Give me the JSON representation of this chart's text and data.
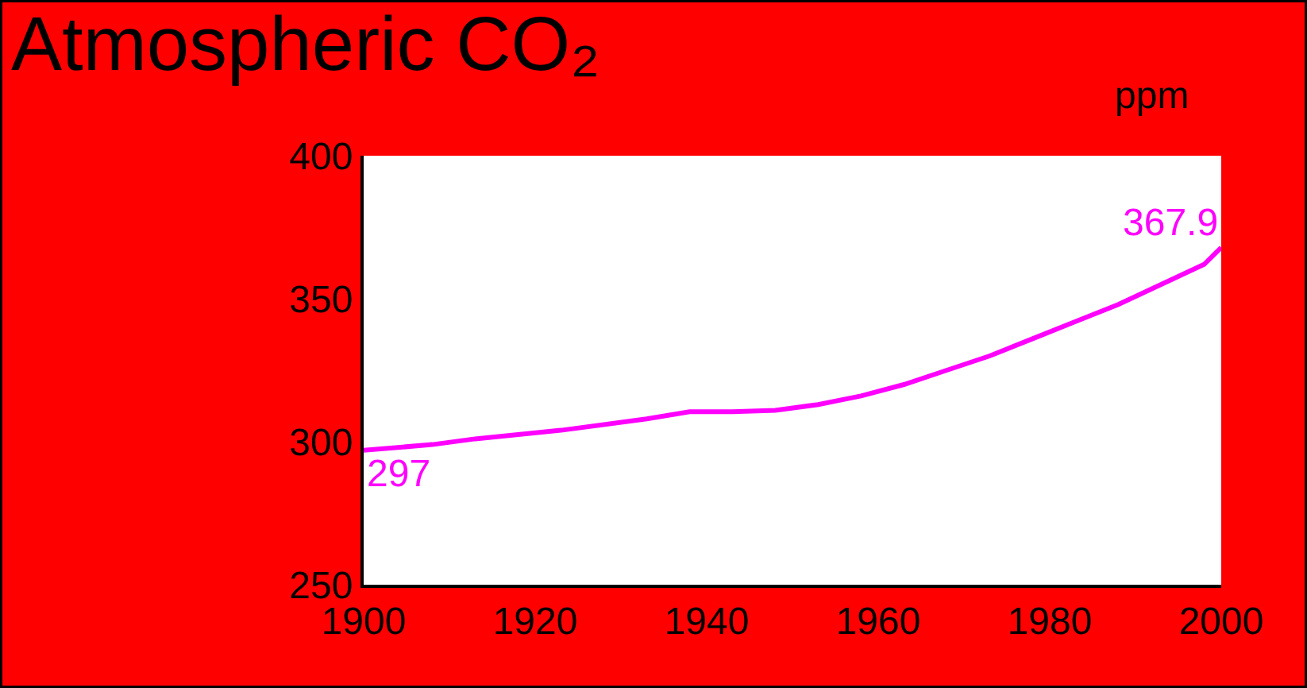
{
  "chart_data": {
    "type": "line",
    "title": "Atmospheric CO₂",
    "ylabel": "ppm",
    "x": [
      1900,
      1908,
      1913,
      1923,
      1933,
      1938,
      1943,
      1948,
      1953,
      1958,
      1963,
      1968,
      1973,
      1978,
      1983,
      1988,
      1993,
      1998,
      2000
    ],
    "series": [
      {
        "color": "#ff00ff",
        "values": [
          297,
          299,
          301,
          304,
          308,
          310.5,
          310.5,
          311,
          313,
          316,
          320,
          325,
          330,
          336,
          342,
          348,
          355,
          362,
          367.9
        ]
      }
    ],
    "xlim": [
      1900,
      2000
    ],
    "xticks": [
      1900,
      1920,
      1940,
      1960,
      1980,
      2000
    ],
    "ylim": [
      250,
      400
    ],
    "yticks": [
      250,
      300,
      350,
      400
    ],
    "marker": "none",
    "line_style": "solid",
    "annotations": [
      {
        "text": "367.9",
        "x": 2000,
        "y": 367.9
      },
      {
        "text": "297",
        "x": 1900,
        "y": 297
      }
    ]
  }
}
